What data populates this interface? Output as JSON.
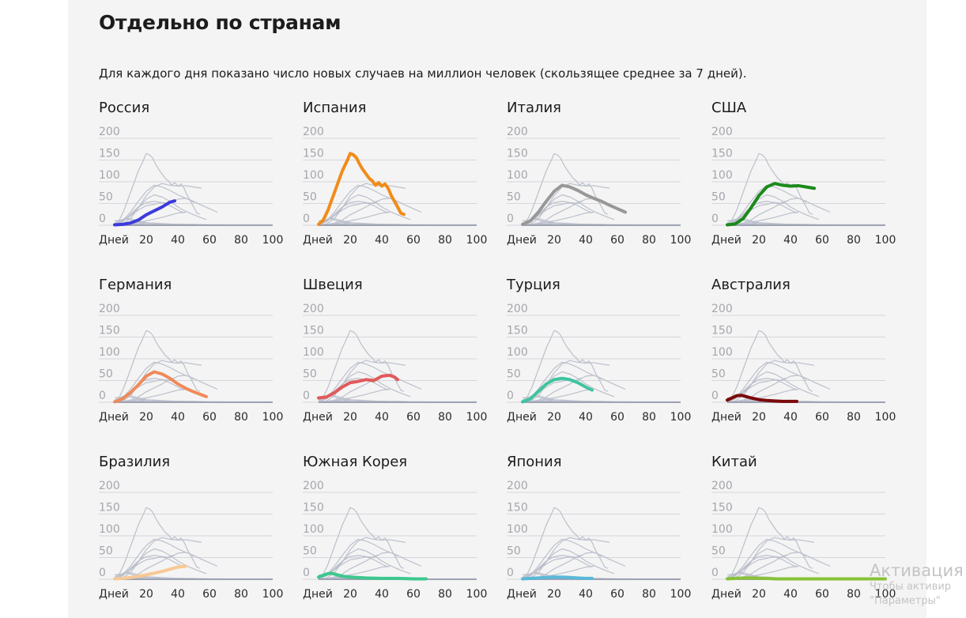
{
  "page": {
    "heading": "Отдельно по странам",
    "subtitle": "Для каждого дня показано число новых случаев на миллион человек (скользящее среднее за 7 дней)."
  },
  "watermark": {
    "title": "Активация",
    "line1": "Чтобы активир",
    "line2": "\"Параметры\""
  },
  "background_color": "#bcc0cc",
  "chart_data": [
    {
      "type": "line",
      "title": "Россия",
      "color": "#3b3bdc",
      "xlim": [
        0,
        100
      ],
      "ylim": [
        0,
        200
      ],
      "yticks": [
        0,
        50,
        100,
        150,
        200
      ],
      "xticks": [
        "Дней",
        "20",
        "40",
        "60",
        "80",
        "100"
      ],
      "series": [
        {
          "name": "Россия",
          "x": [
            0,
            5,
            10,
            15,
            20,
            25,
            30,
            35,
            38
          ],
          "y": [
            1,
            2,
            5,
            12,
            24,
            33,
            42,
            53,
            56
          ]
        }
      ]
    },
    {
      "type": "line",
      "title": "Испания",
      "color": "#f08c1a",
      "xlim": [
        0,
        100
      ],
      "ylim": [
        0,
        200
      ],
      "yticks": [
        0,
        50,
        100,
        150,
        200
      ],
      "xticks": [
        "Дней",
        "20",
        "40",
        "60",
        "80",
        "100"
      ],
      "series": [
        {
          "name": "Испания",
          "x": [
            0,
            3,
            6,
            9,
            12,
            15,
            18,
            20,
            22,
            24,
            26,
            28,
            30,
            32,
            34,
            36,
            38,
            40,
            42,
            44,
            46,
            48,
            50,
            52,
            54
          ],
          "y": [
            2,
            12,
            35,
            65,
            95,
            125,
            148,
            165,
            162,
            155,
            140,
            128,
            118,
            108,
            102,
            92,
            98,
            90,
            95,
            85,
            68,
            55,
            42,
            28,
            25
          ]
        }
      ]
    },
    {
      "type": "line",
      "title": "Италия",
      "color": "#989898",
      "xlim": [
        0,
        100
      ],
      "ylim": [
        0,
        200
      ],
      "yticks": [
        0,
        50,
        100,
        150,
        200
      ],
      "xticks": [
        "Дней",
        "20",
        "40",
        "60",
        "80",
        "100"
      ],
      "series": [
        {
          "name": "Италия",
          "x": [
            0,
            5,
            10,
            15,
            20,
            25,
            30,
            35,
            40,
            45,
            50,
            55,
            60,
            65
          ],
          "y": [
            2,
            10,
            30,
            55,
            78,
            92,
            88,
            80,
            70,
            62,
            55,
            46,
            38,
            30
          ]
        }
      ]
    },
    {
      "type": "line",
      "title": "США",
      "color": "#1a8a1a",
      "xlim": [
        0,
        100
      ],
      "ylim": [
        0,
        200
      ],
      "yticks": [
        0,
        50,
        100,
        150,
        200
      ],
      "xticks": [
        "Дней",
        "20",
        "40",
        "60",
        "80",
        "100"
      ],
      "series": [
        {
          "name": "США",
          "x": [
            0,
            5,
            10,
            15,
            20,
            25,
            30,
            35,
            40,
            45,
            50,
            55
          ],
          "y": [
            1,
            3,
            15,
            40,
            68,
            88,
            96,
            92,
            90,
            91,
            88,
            85
          ]
        }
      ]
    },
    {
      "type": "line",
      "title": "Германия",
      "color": "#ef8a5a",
      "xlim": [
        0,
        100
      ],
      "ylim": [
        0,
        200
      ],
      "yticks": [
        0,
        50,
        100,
        150,
        200
      ],
      "xticks": [
        "Дней",
        "20",
        "40",
        "60",
        "80",
        "100"
      ],
      "series": [
        {
          "name": "Германия",
          "x": [
            0,
            5,
            10,
            15,
            20,
            25,
            30,
            35,
            40,
            45,
            50,
            55,
            58
          ],
          "y": [
            1,
            8,
            22,
            40,
            60,
            70,
            65,
            55,
            42,
            32,
            24,
            17,
            13
          ]
        }
      ]
    },
    {
      "type": "line",
      "title": "Швеция",
      "color": "#e05a5a",
      "xlim": [
        0,
        100
      ],
      "ylim": [
        0,
        200
      ],
      "yticks": [
        0,
        50,
        100,
        150,
        200
      ],
      "xticks": [
        "Дней",
        "20",
        "40",
        "60",
        "80",
        "100"
      ],
      "series": [
        {
          "name": "Швеция",
          "x": [
            0,
            5,
            10,
            15,
            20,
            25,
            30,
            35,
            40,
            45,
            48,
            50
          ],
          "y": [
            10,
            12,
            22,
            35,
            45,
            48,
            52,
            50,
            60,
            62,
            58,
            52
          ]
        }
      ]
    },
    {
      "type": "line",
      "title": "Турция",
      "color": "#3fc4a0",
      "xlim": [
        0,
        100
      ],
      "ylim": [
        0,
        200
      ],
      "yticks": [
        0,
        50,
        100,
        150,
        200
      ],
      "xticks": [
        "Дней",
        "20",
        "40",
        "60",
        "80",
        "100"
      ],
      "series": [
        {
          "name": "Турция",
          "x": [
            0,
            5,
            10,
            15,
            20,
            25,
            30,
            35,
            40,
            44
          ],
          "y": [
            1,
            8,
            25,
            42,
            52,
            55,
            52,
            45,
            35,
            28
          ]
        }
      ]
    },
    {
      "type": "line",
      "title": "Австралия",
      "color": "#7a0a0a",
      "xlim": [
        0,
        100
      ],
      "ylim": [
        0,
        200
      ],
      "yticks": [
        0,
        50,
        100,
        150,
        200
      ],
      "xticks": [
        "Дней",
        "20",
        "40",
        "60",
        "80",
        "100"
      ],
      "series": [
        {
          "name": "Австралия",
          "x": [
            0,
            3,
            6,
            9,
            12,
            15,
            20,
            25,
            30,
            35,
            40,
            44
          ],
          "y": [
            5,
            10,
            15,
            16,
            13,
            10,
            6,
            4,
            3,
            2,
            2,
            2
          ]
        }
      ]
    },
    {
      "type": "line",
      "title": "Бразилия",
      "color": "#f8c894",
      "xlim": [
        0,
        100
      ],
      "ylim": [
        0,
        200
      ],
      "yticks": [
        0,
        50,
        100,
        150,
        200
      ],
      "xticks": [
        "Дней",
        "20",
        "40",
        "60",
        "80",
        "100"
      ],
      "series": [
        {
          "name": "Бразилия",
          "x": [
            0,
            5,
            10,
            15,
            20,
            25,
            30,
            35,
            40,
            45
          ],
          "y": [
            1,
            2,
            4,
            7,
            10,
            14,
            18,
            23,
            28,
            30
          ]
        }
      ]
    },
    {
      "type": "line",
      "title": "Южная Корея",
      "color": "#3cc88e",
      "xlim": [
        0,
        100
      ],
      "ylim": [
        0,
        200
      ],
      "yticks": [
        0,
        50,
        100,
        150,
        200
      ],
      "xticks": [
        "Дней",
        "20",
        "40",
        "60",
        "80",
        "100"
      ],
      "series": [
        {
          "name": "Южная Корея",
          "x": [
            0,
            5,
            8,
            10,
            15,
            20,
            25,
            30,
            40,
            50,
            60,
            68
          ],
          "y": [
            5,
            12,
            14,
            12,
            7,
            5,
            4,
            3,
            2,
            2,
            1,
            1
          ]
        }
      ]
    },
    {
      "type": "line",
      "title": "Япония",
      "color": "#5ab8d8",
      "xlim": [
        0,
        100
      ],
      "ylim": [
        0,
        200
      ],
      "yticks": [
        0,
        50,
        100,
        150,
        200
      ],
      "xticks": [
        "Дней",
        "20",
        "40",
        "60",
        "80",
        "100"
      ],
      "series": [
        {
          "name": "Япония",
          "x": [
            0,
            5,
            10,
            15,
            20,
            25,
            30,
            35,
            40,
            44
          ],
          "y": [
            1,
            2,
            3,
            4,
            5,
            5,
            4,
            3,
            2,
            2
          ]
        }
      ]
    },
    {
      "type": "line",
      "title": "Китай",
      "color": "#88c238",
      "xlim": [
        0,
        100
      ],
      "ylim": [
        0,
        200
      ],
      "yticks": [
        0,
        50,
        100,
        150,
        200
      ],
      "xticks": [
        "Дней",
        "20",
        "40",
        "60",
        "80",
        "100"
      ],
      "series": [
        {
          "name": "Китай",
          "x": [
            0,
            5,
            10,
            15,
            20,
            25,
            30,
            40,
            50,
            60,
            70,
            80,
            90,
            100
          ],
          "y": [
            1,
            2,
            3,
            3,
            2,
            2,
            1,
            1,
            1,
            1,
            1,
            1,
            1,
            1
          ]
        }
      ]
    }
  ]
}
